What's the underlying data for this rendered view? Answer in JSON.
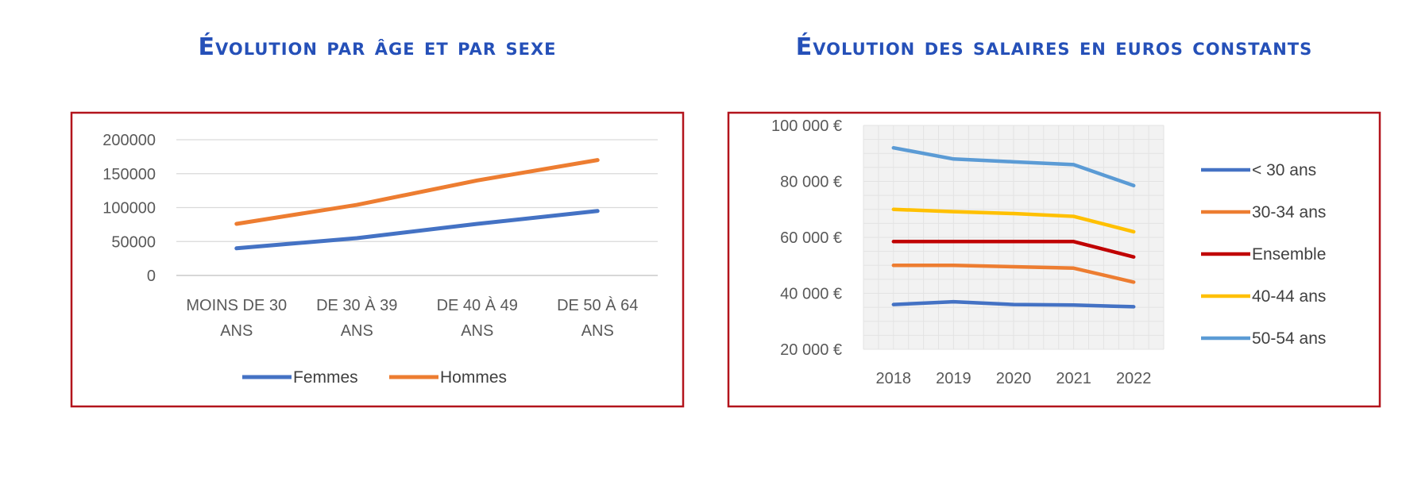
{
  "chart_data": [
    {
      "type": "line",
      "title": "Évolution par âge et par sexe",
      "categories": [
        "MOINS DE 30 ANS",
        "DE 30 À 39 ANS",
        "DE 40 À 49 ANS",
        "DE 50 À 64 ANS"
      ],
      "category_lines": [
        [
          "MOINS DE 30",
          "ANS"
        ],
        [
          "DE 30 À 39",
          "ANS"
        ],
        [
          "DE 40 À 49",
          "ANS"
        ],
        [
          "DE 50 À 64",
          "ANS"
        ]
      ],
      "series": [
        {
          "name": "Femmes",
          "color": "#4472c4",
          "values": [
            40000,
            55000,
            76000,
            95000
          ]
        },
        {
          "name": "Hommes",
          "color": "#ed7d31",
          "values": [
            76000,
            104000,
            140000,
            170000
          ]
        }
      ],
      "yticks": [
        "200000",
        "150000",
        "100000",
        "50000",
        "0"
      ],
      "ylim": [
        0,
        200000
      ],
      "legend": "bottom",
      "grid": true
    },
    {
      "type": "line",
      "title": "Évolution des salaires en euros constants",
      "categories": [
        "2018",
        "2019",
        "2020",
        "2021",
        "2022"
      ],
      "series": [
        {
          "name": "< 30 ans",
          "color": "#4472c4",
          "values": [
            36000,
            37000,
            36000,
            35800,
            35200
          ]
        },
        {
          "name": "30-34 ans",
          "color": "#ed7d31",
          "values": [
            50000,
            50000,
            49500,
            49000,
            44000
          ]
        },
        {
          "name": "Ensemble",
          "color": "#c00000",
          "values": [
            58500,
            58500,
            58500,
            58500,
            53000
          ]
        },
        {
          "name": "40-44 ans",
          "color": "#ffc000",
          "values": [
            70000,
            69200,
            68500,
            67500,
            62000
          ]
        },
        {
          "name": "50-54 ans",
          "color": "#5b9bd5",
          "values": [
            92000,
            88000,
            87000,
            86000,
            78500
          ]
        }
      ],
      "yticks": [
        "100 000 €",
        "80 000 €",
        "60 000 €",
        "40 000 €",
        "20 000 €"
      ],
      "ylim": [
        20000,
        100000
      ],
      "legend": "right",
      "grid": true
    }
  ]
}
